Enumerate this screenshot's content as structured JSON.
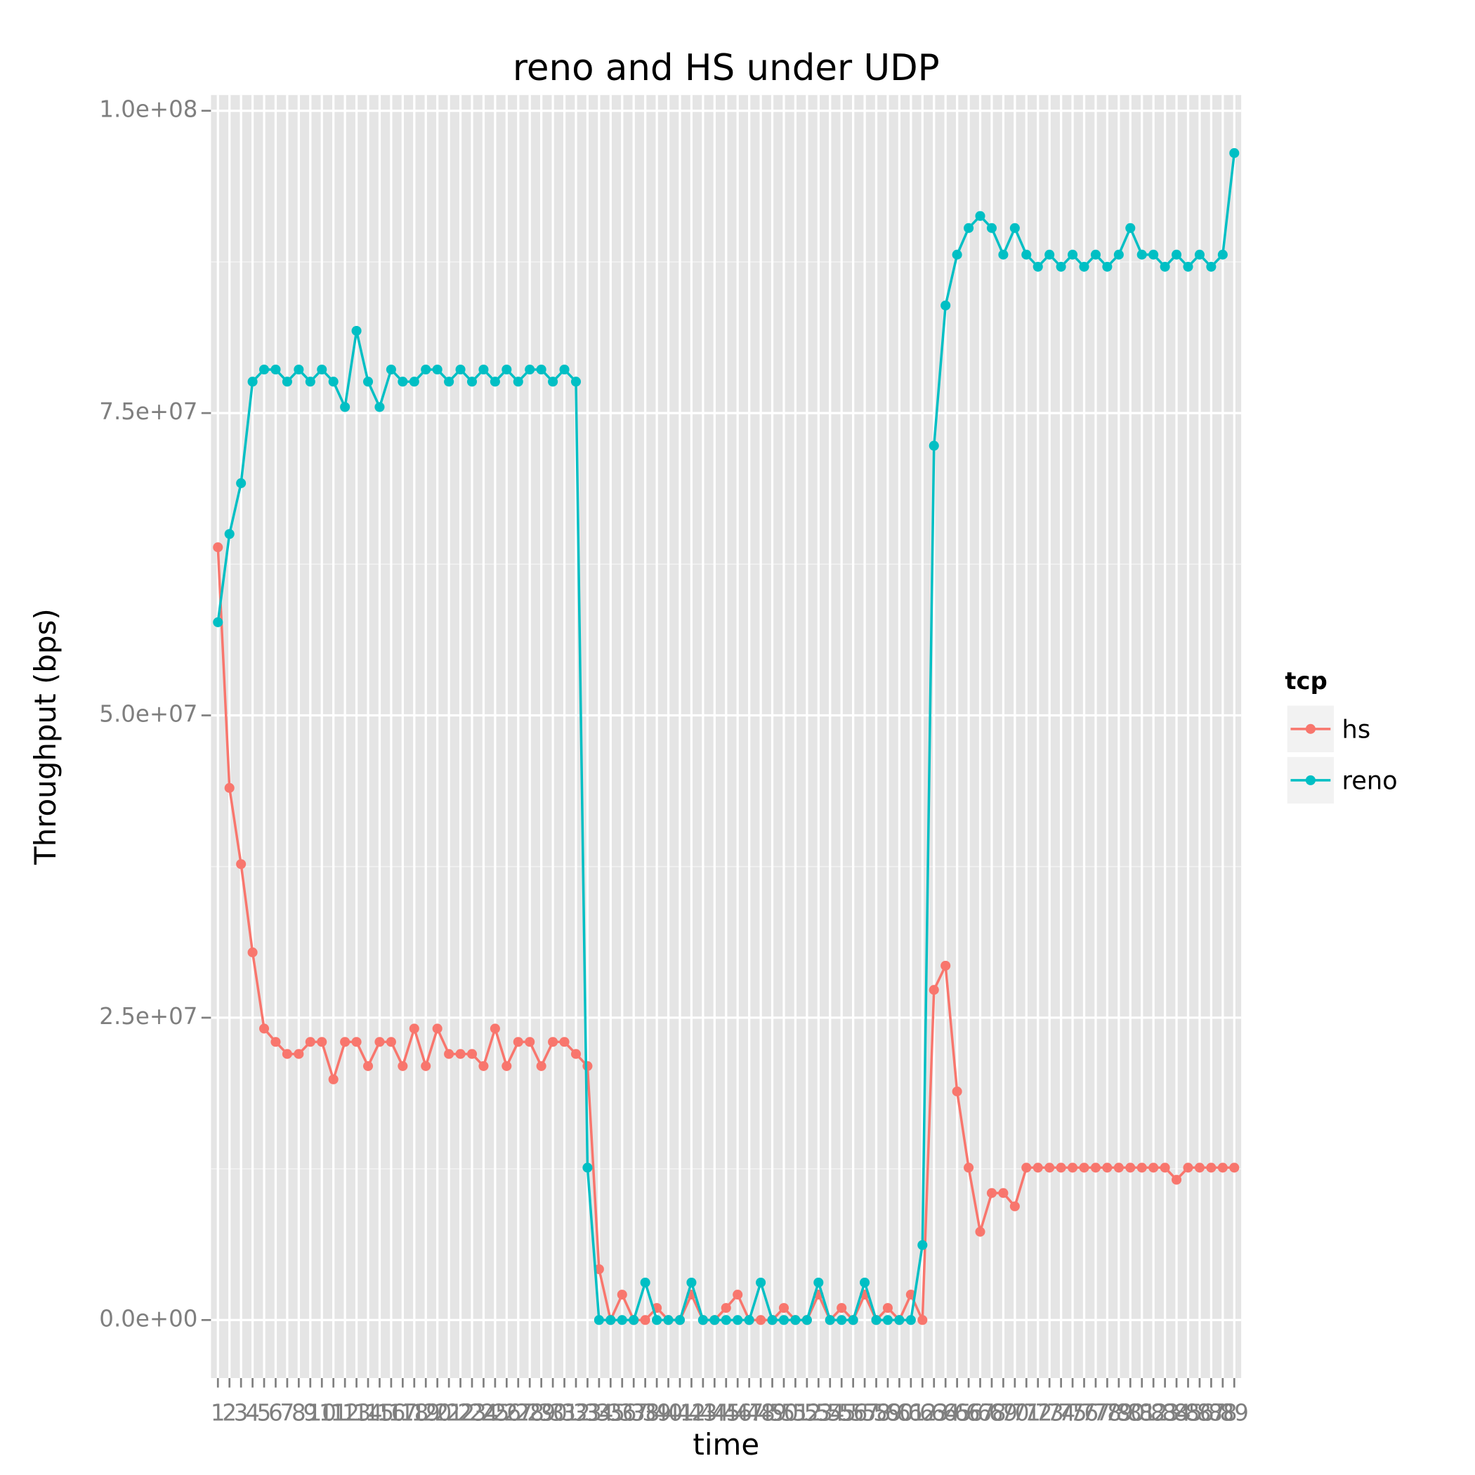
{
  "chart_data": {
    "type": "line",
    "title": "reno and HS under UDP",
    "x_label": "time",
    "y_label": "Throughput (bps)",
    "legend_title": "tcp",
    "legend_position": "right",
    "grid": true,
    "categories": [
      "1",
      "2",
      "3",
      "4",
      "5",
      "6",
      "7",
      "8",
      "9",
      "10",
      "11",
      "12",
      "13",
      "14",
      "15",
      "16",
      "17",
      "18",
      "19",
      "20",
      "21",
      "22",
      "23",
      "24",
      "25",
      "26",
      "27",
      "28",
      "29",
      "30",
      "31",
      "32",
      "33",
      "34",
      "35",
      "36",
      "37",
      "38",
      "39",
      "40",
      "41",
      "42",
      "43",
      "44",
      "45",
      "46",
      "47",
      "48",
      "49",
      "50",
      "51",
      "52",
      "53",
      "54",
      "55",
      "56",
      "57",
      "58",
      "59",
      "60",
      "61",
      "62",
      "63",
      "64",
      "65",
      "66",
      "67",
      "68",
      "69",
      "70",
      "71",
      "72",
      "73",
      "74",
      "75",
      "76",
      "77",
      "78",
      "79",
      "80",
      "81",
      "82",
      "83",
      "84",
      "85",
      "86",
      "87",
      "88",
      "89"
    ],
    "ylim": [
      -4800000,
      101300000
    ],
    "yticks": [
      {
        "value": 0,
        "label": "0.0e+00"
      },
      {
        "value": 25000000,
        "label": "2.5e+07"
      },
      {
        "value": 50000000,
        "label": "5.0e+07"
      },
      {
        "value": 75000000,
        "label": "7.5e+07"
      },
      {
        "value": 100000000,
        "label": "1.0e+08"
      }
    ],
    "series": [
      {
        "name": "hs",
        "color": "#F8766D",
        "values": [
          63900000,
          44000000,
          37700000,
          30400000,
          24100000,
          23000000,
          22000000,
          22000000,
          23000000,
          23000000,
          19900000,
          23000000,
          23000000,
          21000000,
          23000000,
          23000000,
          21000000,
          24100000,
          21000000,
          24100000,
          22000000,
          22000000,
          22000000,
          21000000,
          24100000,
          21000000,
          23000000,
          23000000,
          21000000,
          23000000,
          23000000,
          22000000,
          21000000,
          4200000,
          0,
          2100000,
          0,
          0,
          1000000,
          0,
          0,
          2100000,
          0,
          0,
          1000000,
          2100000,
          0,
          0,
          0,
          1000000,
          0,
          0,
          2100000,
          0,
          1000000,
          0,
          2100000,
          0,
          1000000,
          0,
          2100000,
          0,
          27300000,
          29300000,
          18900000,
          12600000,
          7300000,
          10500000,
          10500000,
          9400000,
          12600000,
          12600000,
          12600000,
          12600000,
          12600000,
          12600000,
          12600000,
          12600000,
          12600000,
          12600000,
          12600000,
          12600000,
          12600000,
          11600000,
          12600000,
          12600000,
          12600000,
          12600000,
          12600000
        ]
      },
      {
        "name": "reno",
        "color": "#00BFC4",
        "values": [
          57700000,
          65000000,
          69200000,
          77600000,
          78600000,
          78600000,
          77600000,
          78600000,
          77600000,
          78600000,
          77600000,
          75500000,
          81800000,
          77600000,
          75500000,
          78600000,
          77600000,
          77600000,
          78600000,
          78600000,
          77600000,
          78600000,
          77600000,
          78600000,
          77600000,
          78600000,
          77600000,
          78600000,
          78600000,
          77600000,
          78600000,
          77600000,
          12600000,
          0,
          0,
          0,
          0,
          3100000,
          0,
          0,
          0,
          3100000,
          0,
          0,
          0,
          0,
          0,
          3100000,
          0,
          0,
          0,
          0,
          3100000,
          0,
          0,
          0,
          3100000,
          0,
          0,
          0,
          0,
          6200000,
          72300000,
          83900000,
          88100000,
          90300000,
          91300000,
          90300000,
          88100000,
          90300000,
          88100000,
          87100000,
          88100000,
          87100000,
          88100000,
          87100000,
          88100000,
          87100000,
          88100000,
          90300000,
          88100000,
          88100000,
          87100000,
          88100000,
          87100000,
          88100000,
          87100000,
          88100000,
          96500000
        ]
      }
    ]
  }
}
